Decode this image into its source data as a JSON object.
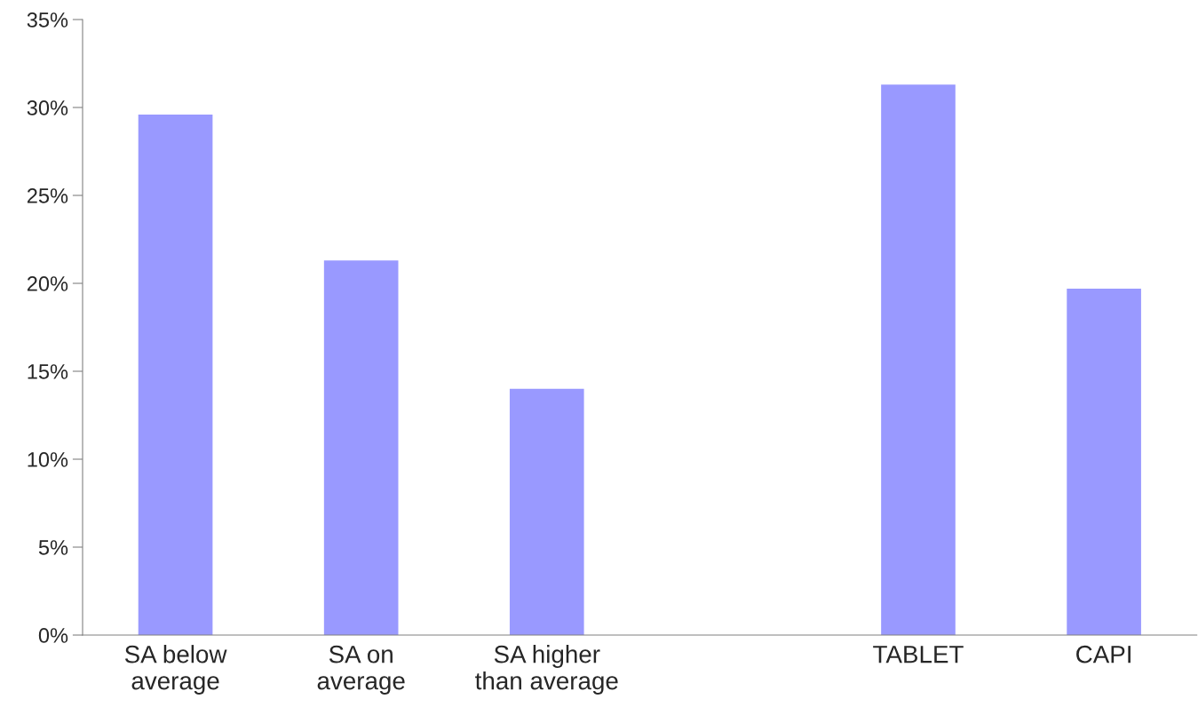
{
  "chart_data": {
    "type": "bar",
    "categories": [
      "SA below\naverage",
      "SA on\naverage",
      "SA higher\nthan average",
      null,
      "TABLET",
      "CAPI"
    ],
    "values": [
      29.6,
      21.3,
      14.0,
      null,
      31.3,
      19.7
    ],
    "color": "#9999ff",
    "ylim": [
      0,
      35
    ],
    "yticks": [
      {
        "value": 0,
        "label": "0%"
      },
      {
        "value": 5,
        "label": "5%"
      },
      {
        "value": 10,
        "label": "10%"
      },
      {
        "value": 15,
        "label": "15%"
      },
      {
        "value": 20,
        "label": "20%"
      },
      {
        "value": 25,
        "label": "25%"
      },
      {
        "value": 30,
        "label": "30%"
      },
      {
        "value": 35,
        "label": "35%"
      }
    ],
    "grid": false,
    "legend": false
  }
}
